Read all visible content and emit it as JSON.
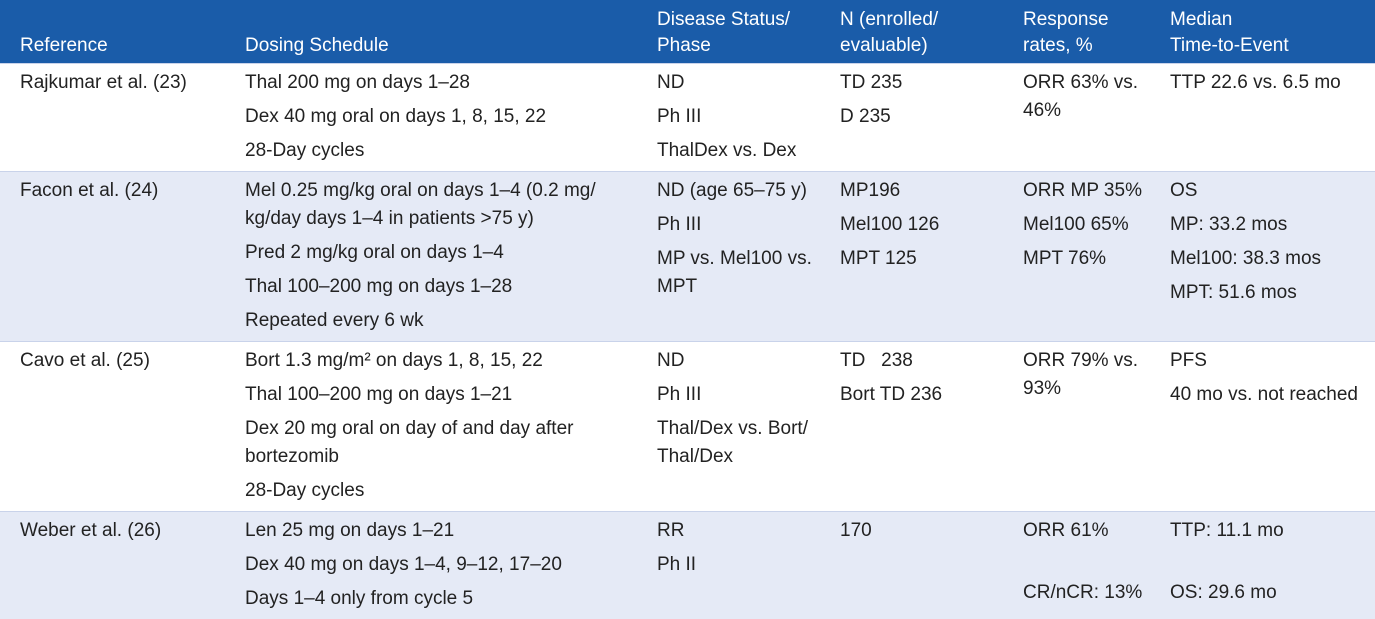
{
  "table": {
    "header": [
      "Reference",
      "Dosing Schedule",
      "Disease Status/\nPhase",
      "N (enrolled/\nevaluable)",
      "Response\nrates, %",
      "Median\nTime-to-Event"
    ],
    "rows": [
      [
        [
          "Rajkumar et al. (23)"
        ],
        [
          "Thal 200 mg on days 1–28",
          "Dex 40 mg oral on days 1, 8, 15, 22",
          "28-Day cycles"
        ],
        [
          "ND",
          "Ph III",
          "ThalDex vs. Dex"
        ],
        [
          "TD 235",
          "D 235"
        ],
        [
          "ORR 63% vs.\n46%"
        ],
        [
          "TTP 22.6 vs. 6.5 mo"
        ]
      ],
      [
        [
          "Facon et al. (24)"
        ],
        [
          "Mel 0.25 mg/kg oral on days 1–4 (0.2 mg/\nkg/day days 1–4 in patients >75 y)",
          "Pred 2 mg/kg oral on days 1–4",
          "Thal 100–200 mg on days 1–28",
          "Repeated every 6 wk"
        ],
        [
          "ND (age 65–75 y)",
          "Ph III",
          "MP vs. Mel100 vs.\nMPT"
        ],
        [
          "MP196",
          "Mel100 126",
          "MPT 125"
        ],
        [
          "ORR MP 35%",
          "Mel100 65%",
          "MPT 76%"
        ],
        [
          "OS",
          "MP: 33.2 mos",
          "Mel100: 38.3 mos",
          "MPT: 51.6 mos"
        ]
      ],
      [
        [
          "Cavo et al. (25)"
        ],
        [
          "Bort 1.3 mg/m² on days 1, 8, 15, 22",
          "Thal 100–200 mg on days 1–21",
          "Dex 20 mg oral on day of and day after\nbortezomib",
          "28-Day cycles"
        ],
        [
          "ND",
          "Ph III",
          "Thal/Dex vs. Bort/\nThal/Dex"
        ],
        [
          "TD   238",
          "Bort TD 236"
        ],
        [
          "ORR 79% vs.\n93%"
        ],
        [
          "PFS",
          "40 mo vs. not reached"
        ]
      ],
      [
        [
          "Weber et al. (26)"
        ],
        [
          "Len 25 mg on days 1–21",
          "Dex 40 mg on days 1–4, 9–12, 17–20",
          "Days 1–4 only from cycle 5"
        ],
        [
          "RR",
          "Ph II"
        ],
        [
          "170"
        ],
        [
          "ORR 61%",
          "CR/nCR: 13%"
        ],
        [
          "TTP: 11.1 mo",
          "OS: 29.6 mo"
        ]
      ]
    ]
  }
}
